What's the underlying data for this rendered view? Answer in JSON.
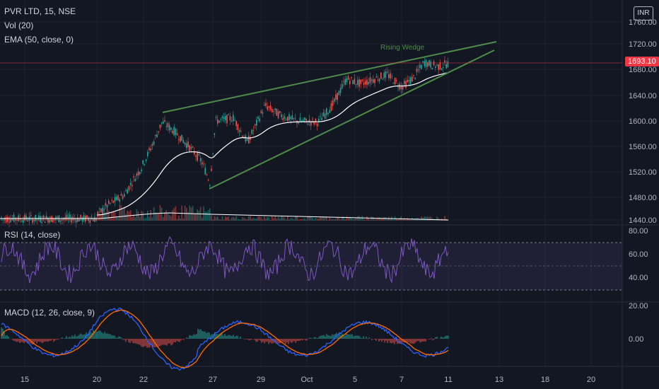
{
  "header": {
    "symbol": "PVR LTD, 15, NSE",
    "vol": "Vol (20)",
    "ema": "EMA (50, close, 0)",
    "rsi": "RSI (14, close)",
    "macd": "MACD (12, 26, close, 9)",
    "currency": "INR"
  },
  "price_badge": "1693.10",
  "annotation": "Rising Wedge",
  "chart_data": {
    "type": "line",
    "price_axis": [
      "1760.00",
      "1720.00",
      "1680.00",
      "1640.00",
      "1600.00",
      "1560.00",
      "1520.00",
      "1480.00",
      "1440.00"
    ],
    "rsi_axis": [
      "80.00",
      "60.00",
      "40.00"
    ],
    "macd_axis": [
      "20.00",
      "0.00"
    ],
    "x_ticks": [
      "15",
      "20",
      "22",
      "27",
      "29",
      "Oct",
      "5",
      "7",
      "11",
      "13",
      "18",
      "20"
    ],
    "last_price": 1693.1,
    "colors": {
      "up": "#26a69a",
      "down": "#ef5350",
      "ema": "#ffffff",
      "rsi": "#7e57c2",
      "macd": "#2962ff",
      "signal": "#ff6d00",
      "wedge": "#4c8c4a"
    }
  }
}
